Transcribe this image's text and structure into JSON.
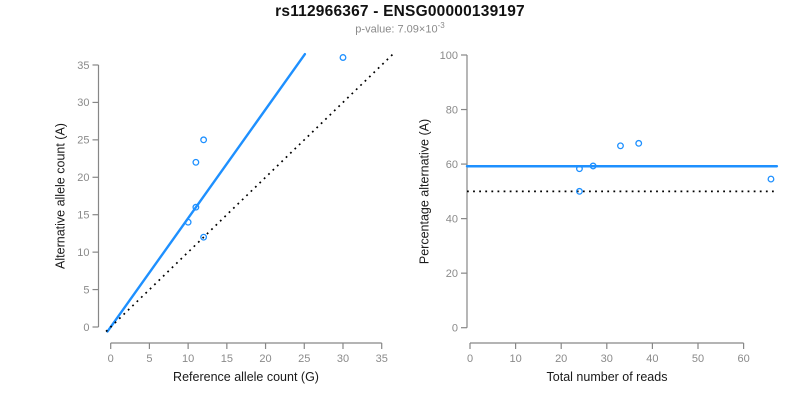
{
  "header": {
    "title": "rs112966367 - ENSG00000139197",
    "subtitle_prefix": "p-value: 7.09×10",
    "subtitle_exponent": "-3"
  },
  "colors": {
    "accent_blue": "#1E90FF",
    "axis_gray": "#878787",
    "tick_label_gray": "#8a8a8a",
    "dotted_black": "#000000",
    "text_dark": "#1a1a1a"
  },
  "chart_data": [
    {
      "type": "scatter",
      "xlabel": "Reference allele count (G)",
      "ylabel": "Alternative allele count (A)",
      "xlim": [
        0,
        35
      ],
      "ylim": [
        0,
        35
      ],
      "xticks": [
        0,
        5,
        10,
        15,
        20,
        25,
        30,
        35
      ],
      "yticks": [
        0,
        5,
        10,
        15,
        20,
        25,
        30,
        35
      ],
      "grid": false,
      "points": [
        [
          12,
          25
        ],
        [
          11,
          22
        ],
        [
          11,
          16
        ],
        [
          10,
          14
        ],
        [
          12,
          12
        ],
        [
          30,
          36
        ]
      ],
      "point_color_key": "accent_blue",
      "lines": [
        {
          "name": "fit-line",
          "slope": 1.4535,
          "intercept": 0,
          "style": "solid",
          "color_key": "accent_blue"
        },
        {
          "name": "identity-line",
          "slope": 1,
          "intercept": 0,
          "style": "dotted",
          "color_key": "dotted_black"
        }
      ]
    },
    {
      "type": "scatter",
      "xlabel": "Total number of reads",
      "ylabel": "Percentage alternative (A)",
      "xlim": [
        0,
        66
      ],
      "ylim": [
        0,
        100
      ],
      "xticks": [
        0,
        10,
        20,
        30,
        40,
        50,
        60
      ],
      "yticks": [
        0,
        20,
        40,
        60,
        80,
        100
      ],
      "grid": false,
      "points": [
        [
          37,
          67.6
        ],
        [
          33,
          66.7
        ],
        [
          27,
          59.3
        ],
        [
          24,
          58.3
        ],
        [
          24,
          50
        ],
        [
          66,
          54.5
        ]
      ],
      "point_color_key": "accent_blue",
      "lines": [
        {
          "name": "mean-percentage-line",
          "slope": 0,
          "intercept": 59.2,
          "style": "solid",
          "color_key": "accent_blue"
        },
        {
          "name": "fifty-percent-line",
          "slope": 0,
          "intercept": 50,
          "style": "dotted",
          "color_key": "dotted_black"
        }
      ]
    }
  ]
}
